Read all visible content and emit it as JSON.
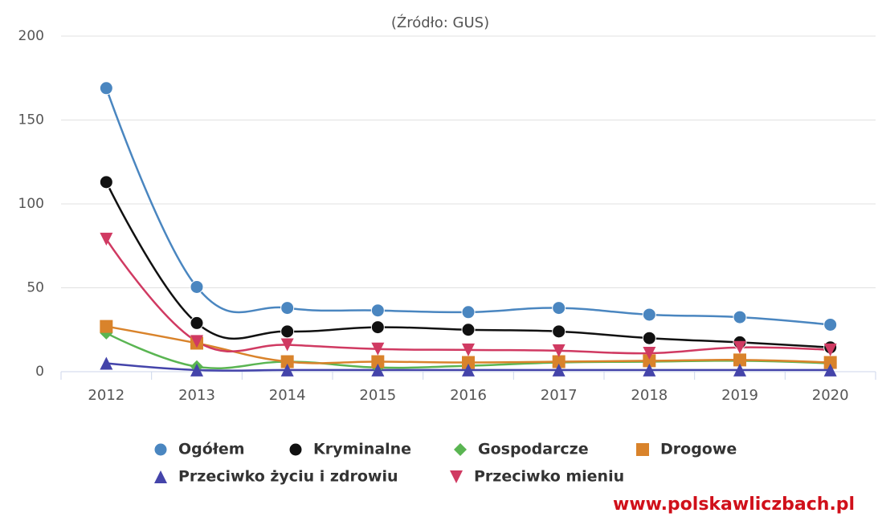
{
  "chart_data": {
    "type": "line",
    "subtitle": "(Źródło: GUS)",
    "categories": [
      "2012",
      "2013",
      "2014",
      "2015",
      "2016",
      "2017",
      "2018",
      "2019",
      "2020"
    ],
    "ylim": [
      0,
      200
    ],
    "yticks": [
      0,
      50,
      100,
      150,
      200
    ],
    "grid": true,
    "smooth": true,
    "series": [
      {
        "name": "Ogółem",
        "color": "#4a86c0",
        "marker": "circle",
        "values": [
          169,
          50.5,
          38,
          36.5,
          35.5,
          38,
          34,
          32.5,
          28
        ]
      },
      {
        "name": "Kryminalne",
        "color": "#111111",
        "marker": "circle",
        "values": [
          113,
          29,
          24,
          26.5,
          25,
          24,
          20,
          17.5,
          14.5
        ]
      },
      {
        "name": "Gospodarcze",
        "color": "#5ab552",
        "marker": "diamond",
        "values": [
          23,
          3,
          6,
          2.5,
          3.5,
          5.5,
          6,
          6.5,
          5
        ]
      },
      {
        "name": "Drogowe",
        "color": "#d9832b",
        "marker": "square",
        "values": [
          27,
          17,
          6,
          6,
          5.5,
          6,
          6.5,
          7,
          5.5
        ]
      },
      {
        "name": "Przeciwko życiu i zdrowiu",
        "color": "#4444aa",
        "marker": "triangle",
        "values": [
          5,
          1,
          1,
          1,
          1,
          1,
          1,
          1,
          1
        ]
      },
      {
        "name": "Przeciwko mieniu",
        "color": "#d03a62",
        "marker": "triangle-down",
        "values": [
          79,
          18,
          16,
          13.5,
          13,
          12.5,
          11,
          14.5,
          13
        ]
      }
    ],
    "watermark": "www.polskawliczbach.pl"
  }
}
